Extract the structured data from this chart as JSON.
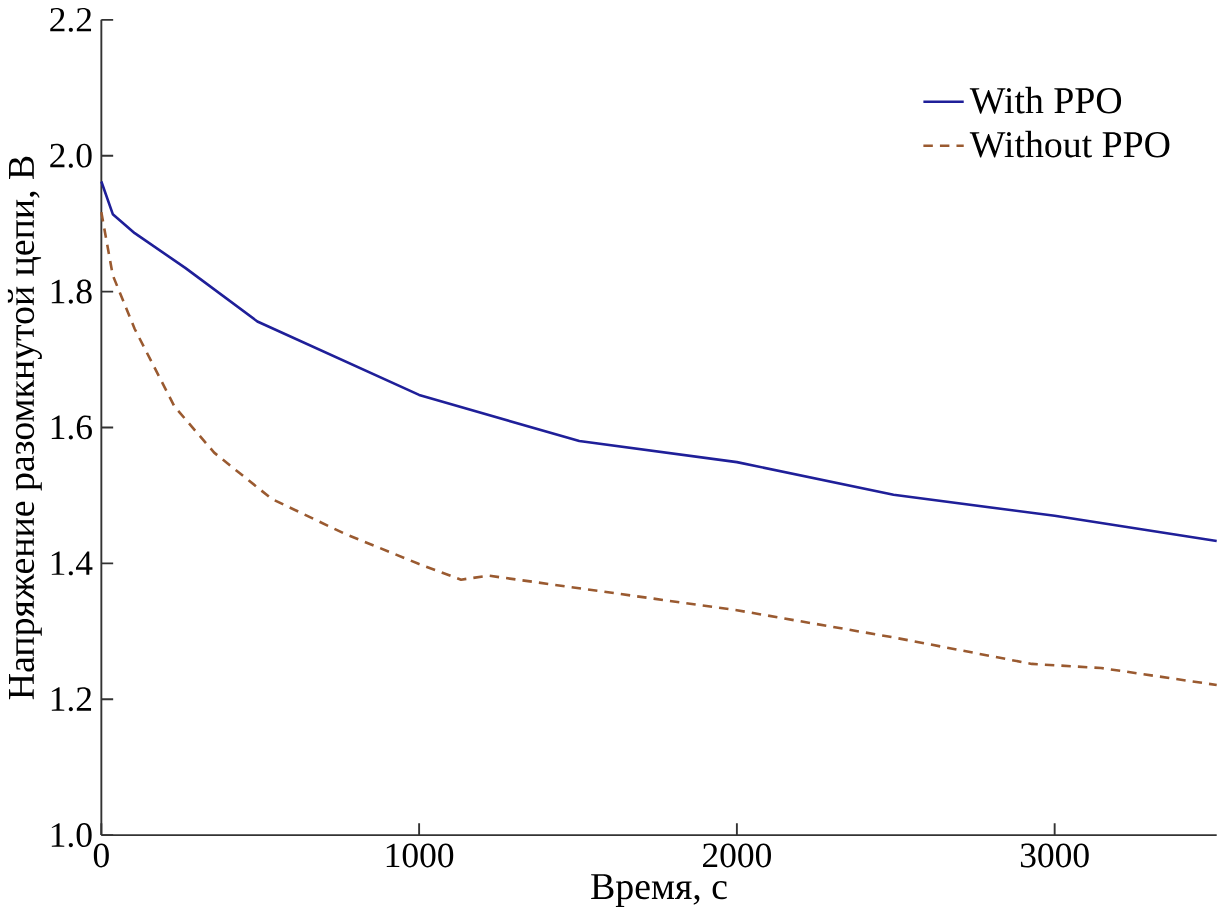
{
  "chart_data": {
    "type": "line",
    "xlabel": "Время, с",
    "ylabel": "Напряжение разомкнутой цепи, В",
    "xlim": [
      0,
      3510
    ],
    "xticks": [
      0,
      1000,
      2000,
      3000
    ],
    "ylim": [
      1.0,
      2.2
    ],
    "yticks": [
      {
        "value": 1.0,
        "label": "1.0"
      },
      {
        "value": 1.2,
        "label": "1.2"
      },
      {
        "value": 1.4,
        "label": "1.4"
      },
      {
        "value": 1.6,
        "label": "1.6"
      },
      {
        "value": 1.8,
        "label": "1.8"
      },
      {
        "value": 2.0,
        "label": "2.0"
      },
      {
        "value": 2.2,
        "label": "2.2"
      }
    ],
    "legend": "top right",
    "grid": false,
    "series": [
      {
        "name": "With PPO",
        "color": "#1f1f99",
        "line_style": "solid",
        "x": [
          0,
          36,
          105,
          264,
          491,
          1000,
          1504,
          2000,
          2493,
          3000,
          3510
        ],
        "values": [
          1.962,
          1.914,
          1.886,
          1.835,
          1.756,
          1.648,
          1.58,
          1.549,
          1.501,
          1.47,
          1.433
        ]
      },
      {
        "name": "Without PPO",
        "color": "#9a5a30",
        "line_style": "dashed",
        "x": [
          0,
          36,
          105,
          230,
          355,
          536,
          764,
          1000,
          1132,
          1218,
          2000,
          2493,
          2928,
          3146,
          3510
        ],
        "values": [
          1.917,
          1.824,
          1.745,
          1.631,
          1.563,
          1.495,
          1.444,
          1.399,
          1.376,
          1.382,
          1.331,
          1.291,
          1.252,
          1.246,
          1.221
        ]
      }
    ]
  }
}
